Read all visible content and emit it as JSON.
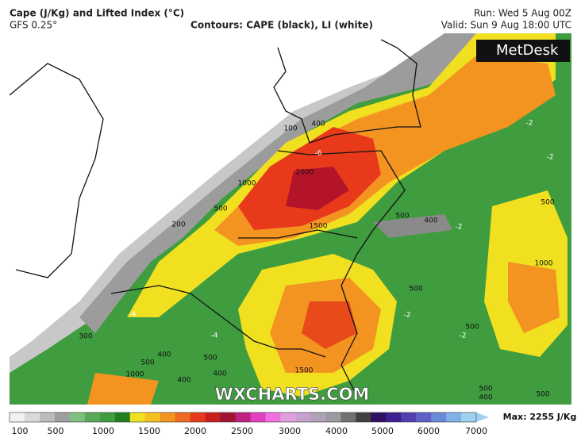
{
  "header": {
    "title": "Cape (J/Kg) and Lifted Index (°C)",
    "model": "GFS 0.25°",
    "contours": "Contours: CAPE (black), LI (white)",
    "run": "Run: Wed 5 Aug 00Z",
    "valid": "Valid: Sun 9 Aug 18:00 UTC"
  },
  "logo": "MetDesk",
  "watermark": "WXCHARTS.COM",
  "contour_labels": [
    "100",
    "400",
    "2000",
    "1000",
    "500",
    "200",
    "1500",
    "500",
    "400",
    "500",
    "1000",
    "500",
    "300",
    "400",
    "500",
    "500",
    "400",
    "1000",
    "400",
    "1500",
    "500",
    "500",
    "400",
    "500"
  ],
  "li_labels": [
    "-2",
    "-2",
    "-6",
    "-4",
    "-4",
    "-2",
    "-2",
    "-2"
  ],
  "colorbar": {
    "ticks": [
      "100",
      "500",
      "1000",
      "1500",
      "2000",
      "2500",
      "3000",
      "4000",
      "5000",
      "6000",
      "7000"
    ],
    "max": "Max: 2255 J/Kg"
  }
}
